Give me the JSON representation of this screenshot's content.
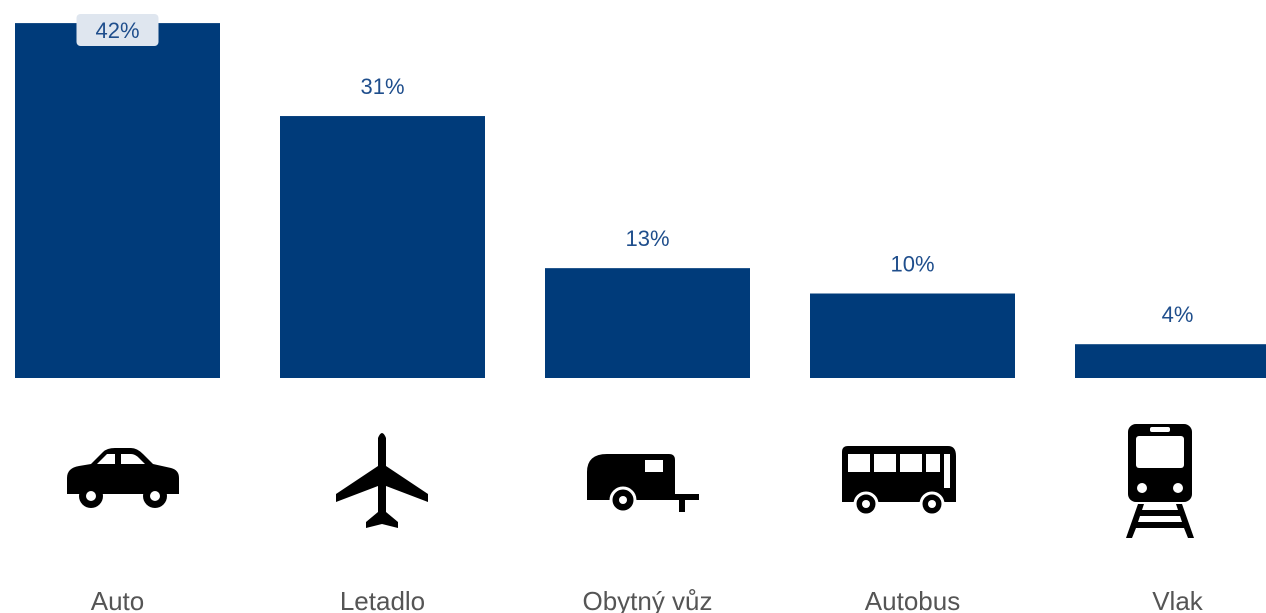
{
  "chart_data": {
    "type": "bar",
    "categories": [
      "Auto",
      "Letadlo",
      "Obytný vůz",
      "Autobus",
      "Vlak"
    ],
    "values": [
      42,
      31,
      13,
      10,
      4
    ],
    "value_labels": [
      "42%",
      "31%",
      "13%",
      "10%",
      "4%"
    ],
    "color": "#003b7a"
  }
}
